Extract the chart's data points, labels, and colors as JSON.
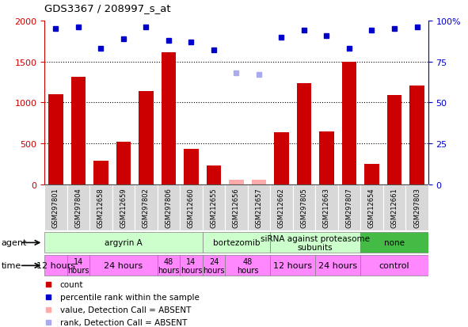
{
  "title": "GDS3367 / 208997_s_at",
  "samples": [
    "GSM297801",
    "GSM297804",
    "GSM212658",
    "GSM212659",
    "GSM297802",
    "GSM297806",
    "GSM212660",
    "GSM212655",
    "GSM212656",
    "GSM212657",
    "GSM212662",
    "GSM297805",
    "GSM212663",
    "GSM297807",
    "GSM212654",
    "GSM212661",
    "GSM297803"
  ],
  "counts": [
    1100,
    1310,
    290,
    520,
    1140,
    1610,
    430,
    230,
    60,
    60,
    640,
    1240,
    650,
    1500,
    255,
    1090,
    1210
  ],
  "counts_absent": [
    false,
    false,
    false,
    false,
    false,
    false,
    false,
    false,
    true,
    true,
    false,
    false,
    false,
    false,
    false,
    false,
    false
  ],
  "percentile_ranks": [
    95,
    96,
    83,
    89,
    96,
    88,
    87,
    82,
    68,
    67,
    90,
    94,
    91,
    83,
    94,
    95,
    96
  ],
  "ranks_absent": [
    false,
    false,
    false,
    false,
    false,
    false,
    false,
    false,
    true,
    true,
    false,
    false,
    false,
    false,
    false,
    false,
    false
  ],
  "ylim_left": [
    0,
    2000
  ],
  "ylim_right": [
    0,
    100
  ],
  "yticks_left": [
    0,
    500,
    1000,
    1500,
    2000
  ],
  "yticks_right": [
    0,
    25,
    50,
    75,
    100
  ],
  "agent_groups": [
    {
      "label": "argyrin A",
      "start": 0,
      "end": 7,
      "color": "#ccffcc"
    },
    {
      "label": "bortezomib",
      "start": 7,
      "end": 10,
      "color": "#ccffcc"
    },
    {
      "label": "siRNA against proteasome\nsubunits",
      "start": 10,
      "end": 14,
      "color": "#ccffcc"
    },
    {
      "label": "none",
      "start": 14,
      "end": 17,
      "color": "#66cc66"
    }
  ],
  "time_groups": [
    {
      "label": "12 hours",
      "start": 0,
      "end": 1,
      "fontsize": 8
    },
    {
      "label": "14\nhours",
      "start": 1,
      "end": 2,
      "fontsize": 7
    },
    {
      "label": "24 hours",
      "start": 2,
      "end": 5,
      "fontsize": 8
    },
    {
      "label": "48\nhours",
      "start": 5,
      "end": 6,
      "fontsize": 7
    },
    {
      "label": "14\nhours",
      "start": 6,
      "end": 7,
      "fontsize": 7
    },
    {
      "label": "24\nhours",
      "start": 7,
      "end": 8,
      "fontsize": 7
    },
    {
      "label": "48\nhours",
      "start": 8,
      "end": 10,
      "fontsize": 7
    },
    {
      "label": "12 hours",
      "start": 10,
      "end": 12,
      "fontsize": 8
    },
    {
      "label": "24 hours",
      "start": 12,
      "end": 14,
      "fontsize": 8
    },
    {
      "label": "control",
      "start": 14,
      "end": 17,
      "fontsize": 8
    }
  ],
  "bar_color_present": "#cc0000",
  "bar_color_absent": "#ffaaaa",
  "dot_color_present": "#0000cc",
  "dot_color_absent": "#aaaaee",
  "left_axis_color": "#cc0000",
  "right_axis_color": "#0000cc",
  "sample_box_color": "#d8d8d8",
  "agent_color_light": "#ccffcc",
  "agent_color_dark": "#44bb44",
  "time_color": "#ff88ff",
  "legend_items": [
    {
      "color": "#cc0000",
      "label": "count"
    },
    {
      "color": "#0000cc",
      "label": "percentile rank within the sample"
    },
    {
      "color": "#ffaaaa",
      "label": "value, Detection Call = ABSENT"
    },
    {
      "color": "#aaaaee",
      "label": "rank, Detection Call = ABSENT"
    }
  ]
}
